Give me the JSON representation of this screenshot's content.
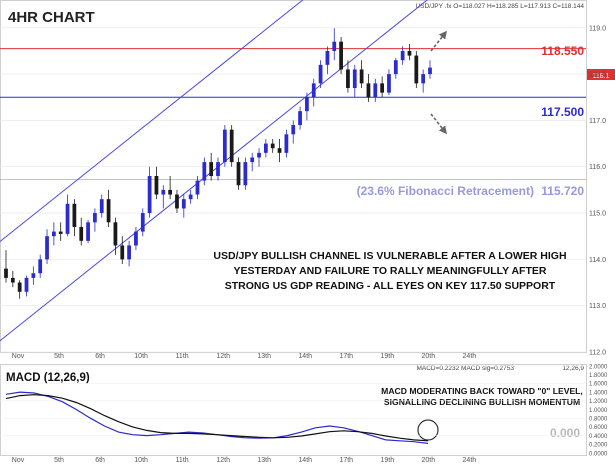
{
  "chart_data": [
    {
      "type": "candlestick",
      "title": "4HR CHART",
      "symbol_info": "USD/JPY .fx O=118.027 H=118.285 L=117.913 C=118.144",
      "ylim": [
        112.0,
        119.6
      ],
      "y_ticks": [
        "112.0",
        "113.0",
        "114.0",
        "115.0",
        "116.0",
        "117.0",
        "118.0",
        "119.0"
      ],
      "x_ticks": [
        "Nov",
        "5th",
        "6th",
        "10th",
        "11th",
        "12th",
        "13th",
        "14th",
        "17th",
        "19th",
        "20th",
        "24th"
      ],
      "last_price_marker": "118.1",
      "levels": [
        {
          "name": "resistance",
          "value": 118.55,
          "label": "118.550",
          "color": "#e03030"
        },
        {
          "name": "support",
          "value": 117.5,
          "label": "117.500",
          "color": "#2b2bd0"
        },
        {
          "name": "fibonacci",
          "value": 115.72,
          "label": "115.720",
          "caption": "(23.6% Fibonacci Retracement)",
          "color": "#9999dd"
        }
      ],
      "annotation": [
        "USD/JPY BULLISH CHANNEL IS VULNERABLE AFTER A LOWER HIGH",
        "YESTERDAY AND FAILURE TO RALLY MEANINGFULLY AFTER",
        "STRONG US GDP READING - ALL EYES ON KEY 117.50 SUPPORT"
      ],
      "colors": {
        "up": "#2b2bd0",
        "down": "#1a1a1a",
        "channel": "#4b4be0"
      },
      "candles": [
        {
          "o": 113.8,
          "h": 114.2,
          "l": 113.5,
          "c": 113.6
        },
        {
          "o": 113.6,
          "h": 113.75,
          "l": 113.4,
          "c": 113.5
        },
        {
          "o": 113.5,
          "h": 113.55,
          "l": 113.15,
          "c": 113.3
        },
        {
          "o": 113.3,
          "h": 113.65,
          "l": 113.2,
          "c": 113.6
        },
        {
          "o": 113.6,
          "h": 113.85,
          "l": 113.45,
          "c": 113.7
        },
        {
          "o": 113.7,
          "h": 114.1,
          "l": 113.6,
          "c": 114.0
        },
        {
          "o": 114.0,
          "h": 114.65,
          "l": 113.9,
          "c": 114.5
        },
        {
          "o": 114.5,
          "h": 114.8,
          "l": 114.3,
          "c": 114.6
        },
        {
          "o": 114.6,
          "h": 114.8,
          "l": 114.4,
          "c": 114.55
        },
        {
          "o": 114.55,
          "h": 115.4,
          "l": 114.5,
          "c": 115.2
        },
        {
          "o": 115.2,
          "h": 115.3,
          "l": 114.5,
          "c": 114.7
        },
        {
          "o": 114.7,
          "h": 114.9,
          "l": 114.3,
          "c": 114.4
        },
        {
          "o": 114.4,
          "h": 114.85,
          "l": 114.35,
          "c": 114.8
        },
        {
          "o": 114.8,
          "h": 115.1,
          "l": 114.6,
          "c": 115.0
        },
        {
          "o": 115.0,
          "h": 115.4,
          "l": 114.9,
          "c": 115.3
        },
        {
          "o": 115.3,
          "h": 115.5,
          "l": 114.7,
          "c": 114.8
        },
        {
          "o": 114.8,
          "h": 114.9,
          "l": 114.1,
          "c": 114.3
        },
        {
          "o": 114.3,
          "h": 114.5,
          "l": 113.9,
          "c": 114.0
        },
        {
          "o": 114.0,
          "h": 114.4,
          "l": 113.85,
          "c": 114.3
        },
        {
          "o": 114.3,
          "h": 114.7,
          "l": 114.2,
          "c": 114.6
        },
        {
          "o": 114.6,
          "h": 115.1,
          "l": 114.5,
          "c": 115.0
        },
        {
          "o": 115.0,
          "h": 116.0,
          "l": 114.9,
          "c": 115.8
        },
        {
          "o": 115.8,
          "h": 116.0,
          "l": 115.3,
          "c": 115.4
        },
        {
          "o": 115.4,
          "h": 115.6,
          "l": 115.1,
          "c": 115.5
        },
        {
          "o": 115.5,
          "h": 115.8,
          "l": 115.3,
          "c": 115.4
        },
        {
          "o": 115.4,
          "h": 115.5,
          "l": 115.0,
          "c": 115.1
        },
        {
          "o": 115.1,
          "h": 115.4,
          "l": 114.9,
          "c": 115.3
        },
        {
          "o": 115.3,
          "h": 115.5,
          "l": 115.2,
          "c": 115.4
        },
        {
          "o": 115.4,
          "h": 115.8,
          "l": 115.3,
          "c": 115.7
        },
        {
          "o": 115.7,
          "h": 116.2,
          "l": 115.6,
          "c": 116.1
        },
        {
          "o": 116.1,
          "h": 116.3,
          "l": 115.7,
          "c": 115.8
        },
        {
          "o": 115.8,
          "h": 116.2,
          "l": 115.7,
          "c": 116.1
        },
        {
          "o": 116.1,
          "h": 116.9,
          "l": 116.0,
          "c": 116.8
        },
        {
          "o": 116.8,
          "h": 116.9,
          "l": 116.0,
          "c": 116.1
        },
        {
          "o": 116.1,
          "h": 116.2,
          "l": 115.5,
          "c": 115.6
        },
        {
          "o": 115.6,
          "h": 116.2,
          "l": 115.5,
          "c": 116.1
        },
        {
          "o": 116.1,
          "h": 116.3,
          "l": 115.9,
          "c": 116.2
        },
        {
          "o": 116.2,
          "h": 116.4,
          "l": 116.0,
          "c": 116.3
        },
        {
          "o": 116.3,
          "h": 116.6,
          "l": 116.2,
          "c": 116.5
        },
        {
          "o": 116.5,
          "h": 116.6,
          "l": 116.3,
          "c": 116.4
        },
        {
          "o": 116.4,
          "h": 116.6,
          "l": 116.1,
          "c": 116.3
        },
        {
          "o": 116.3,
          "h": 116.8,
          "l": 116.2,
          "c": 116.7
        },
        {
          "o": 116.7,
          "h": 117.0,
          "l": 116.5,
          "c": 116.9
        },
        {
          "o": 116.9,
          "h": 117.3,
          "l": 116.8,
          "c": 117.2
        },
        {
          "o": 117.2,
          "h": 117.6,
          "l": 117.0,
          "c": 117.5
        },
        {
          "o": 117.5,
          "h": 117.9,
          "l": 117.3,
          "c": 117.8
        },
        {
          "o": 117.8,
          "h": 118.3,
          "l": 117.7,
          "c": 118.2
        },
        {
          "o": 118.2,
          "h": 118.6,
          "l": 118.0,
          "c": 118.5
        },
        {
          "o": 118.5,
          "h": 118.99,
          "l": 118.3,
          "c": 118.7
        },
        {
          "o": 118.7,
          "h": 118.8,
          "l": 118.0,
          "c": 118.1
        },
        {
          "o": 118.1,
          "h": 118.3,
          "l": 117.6,
          "c": 117.7
        },
        {
          "o": 117.7,
          "h": 118.2,
          "l": 117.5,
          "c": 118.1
        },
        {
          "o": 118.1,
          "h": 118.3,
          "l": 117.7,
          "c": 117.8
        },
        {
          "o": 117.8,
          "h": 118.0,
          "l": 117.4,
          "c": 117.5
        },
        {
          "o": 117.5,
          "h": 117.9,
          "l": 117.4,
          "c": 117.8
        },
        {
          "o": 117.8,
          "h": 117.95,
          "l": 117.5,
          "c": 117.6
        },
        {
          "o": 117.6,
          "h": 118.1,
          "l": 117.55,
          "c": 118.0
        },
        {
          "o": 118.0,
          "h": 118.35,
          "l": 117.9,
          "c": 118.3
        },
        {
          "o": 118.3,
          "h": 118.6,
          "l": 118.2,
          "c": 118.5
        },
        {
          "o": 118.5,
          "h": 118.65,
          "l": 118.3,
          "c": 118.4
        },
        {
          "o": 118.4,
          "h": 118.5,
          "l": 117.7,
          "c": 117.8
        },
        {
          "o": 117.8,
          "h": 118.1,
          "l": 117.6,
          "c": 118.0
        },
        {
          "o": 118.0,
          "h": 118.3,
          "l": 117.9,
          "c": 118.14
        }
      ]
    },
    {
      "type": "line",
      "title": "MACD (12,26,9)",
      "header": "MACD=0.2232 MACD sig=0.2753",
      "params": "12,26,9",
      "ylim": [
        0.0,
        2.0
      ],
      "y_ticks": [
        "0.0000",
        "0.2000",
        "0.4000",
        "0.6000",
        "0.8000",
        "1.0000",
        "1.2000",
        "1.4000",
        "1.6000",
        "1.8000",
        "2.0000"
      ],
      "zero_label": "0.000",
      "annotation": [
        "MACD MODERATING BACK TOWARD \"0\" LEVEL,",
        "SIGNALLING DECLINING BULLISH MOMENTUM"
      ],
      "series": [
        {
          "name": "MACD",
          "color": "#2b2bd0",
          "values": [
            1.35,
            1.4,
            1.38,
            1.3,
            1.18,
            1.0,
            0.8,
            0.62,
            0.48,
            0.42,
            0.4,
            0.42,
            0.45,
            0.48,
            0.46,
            0.42,
            0.38,
            0.35,
            0.34,
            0.35,
            0.4,
            0.48,
            0.58,
            0.62,
            0.58,
            0.5,
            0.4,
            0.3,
            0.28,
            0.26,
            0.22
          ]
        },
        {
          "name": "MACD sig",
          "color": "#111111",
          "values": [
            1.25,
            1.32,
            1.34,
            1.32,
            1.26,
            1.16,
            1.02,
            0.86,
            0.72,
            0.6,
            0.52,
            0.47,
            0.45,
            0.45,
            0.44,
            0.42,
            0.4,
            0.38,
            0.36,
            0.35,
            0.36,
            0.39,
            0.44,
            0.49,
            0.51,
            0.49,
            0.45,
            0.39,
            0.34,
            0.3,
            0.28
          ]
        }
      ]
    }
  ]
}
